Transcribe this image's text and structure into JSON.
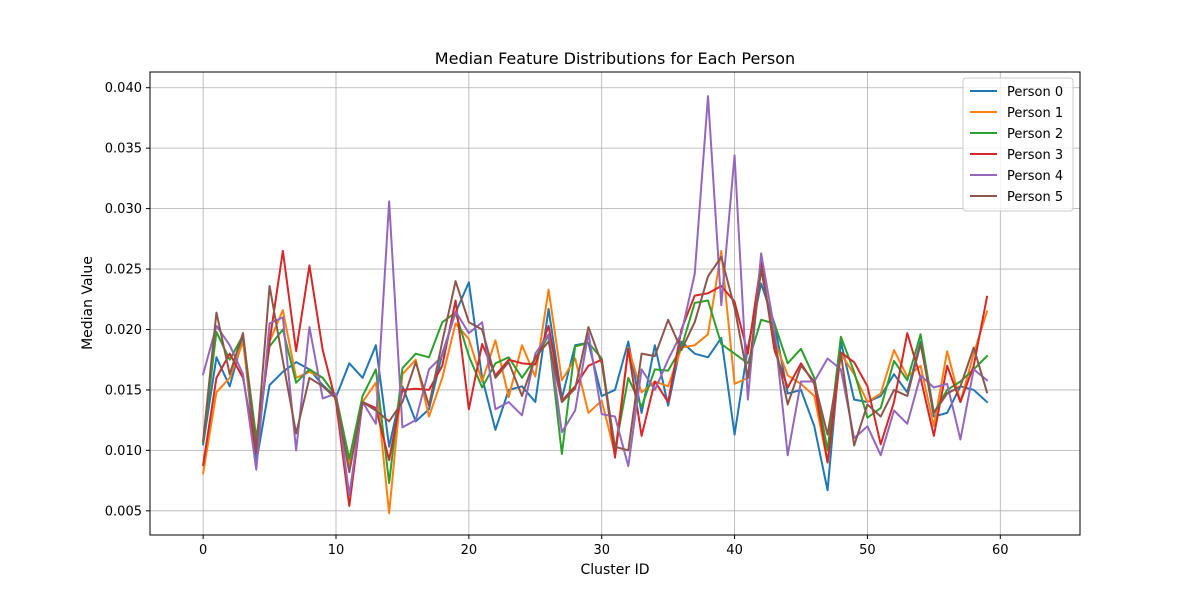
{
  "chart_data": {
    "type": "line",
    "title": "Median Feature Distributions for Each Person",
    "xlabel": "Cluster ID",
    "ylabel": "Median Value",
    "xlim": [
      -4,
      66
    ],
    "ylim": [
      0.003,
      0.0413
    ],
    "xticks": [
      0,
      10,
      20,
      30,
      40,
      50,
      60
    ],
    "xtick_labels": [
      "0",
      "10",
      "20",
      "30",
      "40",
      "50",
      "60"
    ],
    "yticks": [
      0.005,
      0.01,
      0.015,
      0.02,
      0.025,
      0.03,
      0.035,
      0.04
    ],
    "ytick_labels": [
      "0.005",
      "0.010",
      "0.015",
      "0.020",
      "0.025",
      "0.030",
      "0.035",
      "0.040"
    ],
    "grid": true,
    "legend_position": "top-right",
    "x": [
      0,
      1,
      2,
      3,
      4,
      5,
      6,
      7,
      8,
      9,
      10,
      11,
      12,
      13,
      14,
      15,
      16,
      17,
      18,
      19,
      20,
      21,
      22,
      23,
      24,
      25,
      26,
      27,
      28,
      29,
      30,
      31,
      32,
      33,
      34,
      35,
      36,
      37,
      38,
      39,
      40,
      41,
      42,
      43,
      44,
      45,
      46,
      47,
      48,
      49,
      50,
      51,
      52,
      53,
      54,
      55,
      56,
      57,
      58,
      59
    ],
    "series": [
      {
        "name": "Person 0",
        "color": "#1f77b4",
        "values": [
          0.0105,
          0.0177,
          0.0153,
          0.0193,
          0.009,
          0.0154,
          0.0165,
          0.0173,
          0.0167,
          0.0154,
          0.0144,
          0.0172,
          0.016,
          0.0187,
          0.0103,
          0.0153,
          0.0124,
          0.0134,
          0.018,
          0.0214,
          0.0239,
          0.016,
          0.0117,
          0.015,
          0.0153,
          0.014,
          0.0217,
          0.0143,
          0.0187,
          0.0189,
          0.0145,
          0.015,
          0.019,
          0.0131,
          0.0187,
          0.0137,
          0.019,
          0.018,
          0.0177,
          0.0193,
          0.0113,
          0.0185,
          0.0238,
          0.0205,
          0.0147,
          0.015,
          0.012,
          0.0067,
          0.019,
          0.0142,
          0.014,
          0.0145,
          0.0163,
          0.0148,
          0.019,
          0.0128,
          0.0131,
          0.0153,
          0.015,
          0.014
        ]
      },
      {
        "name": "Person 1",
        "color": "#ff7f0e",
        "values": [
          0.0081,
          0.0148,
          0.016,
          0.019,
          0.0101,
          0.019,
          0.0216,
          0.016,
          0.0165,
          0.016,
          0.0145,
          0.0088,
          0.014,
          0.0156,
          0.0048,
          0.0163,
          0.0175,
          0.0128,
          0.016,
          0.0205,
          0.0192,
          0.0157,
          0.0191,
          0.0144,
          0.0187,
          0.0161,
          0.0233,
          0.0158,
          0.0176,
          0.0131,
          0.0141,
          0.0097,
          0.0185,
          0.0148,
          0.0157,
          0.0153,
          0.0185,
          0.0187,
          0.0196,
          0.0265,
          0.0155,
          0.016,
          0.025,
          0.0191,
          0.0162,
          0.0155,
          0.0145,
          0.009,
          0.018,
          0.0163,
          0.014,
          0.0147,
          0.0183,
          0.0161,
          0.017,
          0.012,
          0.0182,
          0.014,
          0.018,
          0.0215
        ]
      },
      {
        "name": "Person 2",
        "color": "#2ca02c",
        "values": [
          0.0107,
          0.0198,
          0.0175,
          0.0195,
          0.011,
          0.0186,
          0.02,
          0.0156,
          0.0167,
          0.016,
          0.0145,
          0.0093,
          0.0145,
          0.0167,
          0.0073,
          0.0168,
          0.018,
          0.0177,
          0.0206,
          0.0214,
          0.0178,
          0.0152,
          0.0172,
          0.0177,
          0.016,
          0.0176,
          0.0195,
          0.0097,
          0.0186,
          0.0189,
          0.0176,
          0.01,
          0.016,
          0.0136,
          0.0167,
          0.0166,
          0.0185,
          0.0222,
          0.0224,
          0.0188,
          0.018,
          0.0172,
          0.0208,
          0.0205,
          0.0172,
          0.0184,
          0.016,
          0.01,
          0.0194,
          0.0165,
          0.0127,
          0.0135,
          0.0174,
          0.0158,
          0.0196,
          0.0131,
          0.015,
          0.0157,
          0.0167,
          0.0178
        ]
      },
      {
        "name": "Person 3",
        "color": "#d62728",
        "values": [
          0.0088,
          0.016,
          0.018,
          0.016,
          0.0098,
          0.019,
          0.0265,
          0.0182,
          0.0253,
          0.0183,
          0.014,
          0.0054,
          0.014,
          0.0135,
          0.0092,
          0.015,
          0.0151,
          0.015,
          0.017,
          0.0224,
          0.0134,
          0.0188,
          0.0162,
          0.0175,
          0.0172,
          0.0171,
          0.0203,
          0.0141,
          0.0153,
          0.017,
          0.0175,
          0.0094,
          0.0184,
          0.0112,
          0.0157,
          0.014,
          0.02,
          0.0228,
          0.023,
          0.0236,
          0.0223,
          0.018,
          0.0256,
          0.0183,
          0.0152,
          0.0172,
          0.0155,
          0.009,
          0.0181,
          0.0173,
          0.0153,
          0.0105,
          0.014,
          0.0197,
          0.016,
          0.0112,
          0.017,
          0.014,
          0.017,
          0.0227
        ]
      },
      {
        "name": "Person 4",
        "color": "#9467bd",
        "values": [
          0.0163,
          0.0203,
          0.0187,
          0.0163,
          0.0084,
          0.0205,
          0.021,
          0.01,
          0.0202,
          0.0143,
          0.0147,
          0.0063,
          0.014,
          0.0122,
          0.0306,
          0.0119,
          0.0125,
          0.0167,
          0.0178,
          0.0215,
          0.0197,
          0.0206,
          0.0134,
          0.014,
          0.0129,
          0.018,
          0.0196,
          0.0115,
          0.0133,
          0.0197,
          0.013,
          0.0128,
          0.0087,
          0.0167,
          0.015,
          0.0175,
          0.0197,
          0.0246,
          0.0393,
          0.022,
          0.0344,
          0.0142,
          0.0263,
          0.02,
          0.0096,
          0.0157,
          0.0157,
          0.0176,
          0.0167,
          0.011,
          0.012,
          0.0096,
          0.0133,
          0.0122,
          0.0162,
          0.0152,
          0.0155,
          0.0109,
          0.0167,
          0.0158
        ]
      },
      {
        "name": "Person 5",
        "color": "#8c564b",
        "values": [
          0.0108,
          0.0214,
          0.0163,
          0.0197,
          0.01,
          0.0236,
          0.0174,
          0.0114,
          0.016,
          0.0153,
          0.0143,
          0.0082,
          0.014,
          0.0133,
          0.0124,
          0.014,
          0.0173,
          0.0137,
          0.019,
          0.024,
          0.0206,
          0.02,
          0.016,
          0.0173,
          0.0145,
          0.0177,
          0.019,
          0.014,
          0.0151,
          0.0202,
          0.0172,
          0.0103,
          0.01,
          0.018,
          0.0178,
          0.0208,
          0.0183,
          0.0206,
          0.0244,
          0.026,
          0.0218,
          0.016,
          0.025,
          0.019,
          0.0138,
          0.017,
          0.0157,
          0.0113,
          0.018,
          0.0104,
          0.0138,
          0.0128,
          0.015,
          0.0145,
          0.0188,
          0.0131,
          0.0147,
          0.0153,
          0.0185,
          0.0148
        ]
      }
    ]
  }
}
